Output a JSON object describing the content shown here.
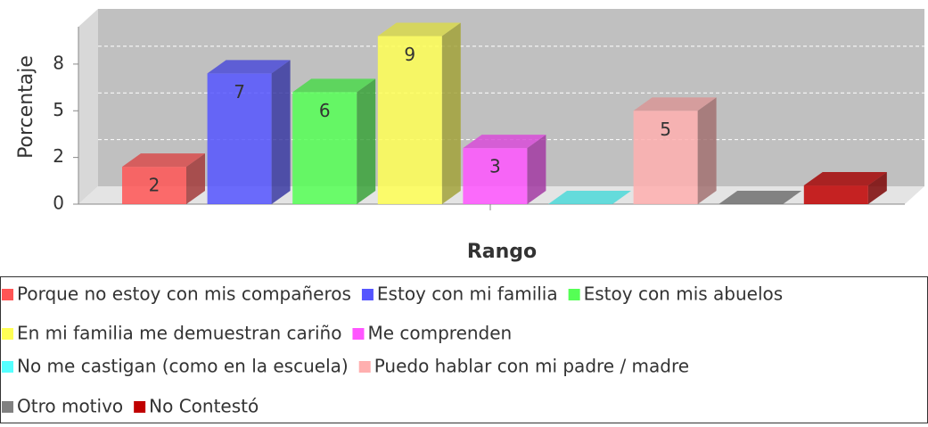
{
  "chart_data": {
    "type": "bar3d",
    "y_label": "Porcentaje",
    "x_label": "Rango",
    "categories": [
      null
    ],
    "series": [
      {
        "name": "Porque no estoy con mis compañeros",
        "color": "#ff5555",
        "values": [
          2
        ],
        "value_labels": [
          "2"
        ]
      },
      {
        "name": "Estoy con mi familia",
        "color": "#5555ff",
        "values": [
          7
        ],
        "value_labels": [
          "7"
        ]
      },
      {
        "name": "Estoy con mis abuelos",
        "color": "#55ff55",
        "values": [
          6
        ],
        "value_labels": [
          "6"
        ]
      },
      {
        "name": "En mi familia me demuestran cariño",
        "color": "#ffff55",
        "values": [
          9
        ],
        "value_labels": [
          "9"
        ]
      },
      {
        "name": "Me comprenden",
        "color": "#ff55ff",
        "values": [
          3
        ],
        "value_labels": [
          "3"
        ]
      },
      {
        "name": "No me castigan (como en la escuela)",
        "color": "#55ffff",
        "values": [
          0
        ],
        "value_labels": [
          null
        ]
      },
      {
        "name": "Puedo hablar con mi padre / madre",
        "color": "#ffafaf",
        "values": [
          5
        ],
        "value_labels": [
          "5"
        ]
      },
      {
        "name": "Otro motivo",
        "color": "#808080",
        "values": [
          0
        ],
        "value_labels": [
          null
        ]
      },
      {
        "name": "No Contestó",
        "color": "#c00000",
        "values": [
          1
        ],
        "value_labels": [
          null
        ]
      }
    ],
    "ylim": [
      0,
      9.5
    ],
    "yticks": [
      0,
      {
        "value": 2.5,
        "label": "2"
      },
      5,
      {
        "value": 7.5,
        "label": "8"
      }
    ],
    "grid": true
  }
}
